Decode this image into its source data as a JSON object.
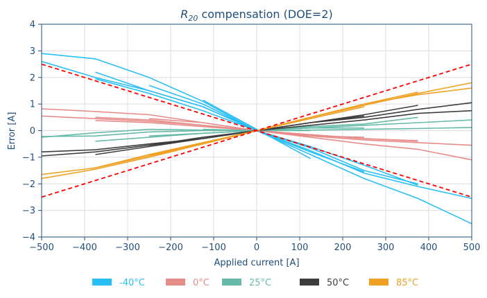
{
  "chart_data": {
    "type": "line",
    "title": "R20 compensation (DOE=2)",
    "title_main": "R",
    "title_sub": "20",
    "title_rest": " compensation (DOE=2)",
    "xlabel": "Applied current [A]",
    "ylabel": "Error [A]",
    "xlim": [
      -500,
      500
    ],
    "ylim": [
      -4,
      4
    ],
    "xticks": [
      -500,
      -400,
      -300,
      -200,
      -100,
      0,
      100,
      200,
      300,
      400,
      500
    ],
    "yticks": [
      -4,
      -3,
      -2,
      -1,
      0,
      1,
      2,
      3,
      4
    ],
    "xtick_labels": [
      "−500",
      "−400",
      "−300",
      "−200",
      "−100",
      "0",
      "100",
      "200",
      "300",
      "400",
      "500"
    ],
    "ytick_labels": [
      "−4",
      "−3",
      "−2",
      "−1",
      "0",
      "1",
      "2",
      "3",
      "4"
    ],
    "grid": true,
    "legend_position": "bottom-center",
    "legend": [
      {
        "label": "-40°C",
        "color": "#29bff5"
      },
      {
        "label": "0°C",
        "color": "#e88c8a"
      },
      {
        "label": "25°C",
        "color": "#66bba8"
      },
      {
        "label": "50°C",
        "color": "#3d3d3d"
      },
      {
        "label": "85°C",
        "color": "#eea123"
      }
    ],
    "series": [
      {
        "group": "-40°C",
        "color": "#29bff5",
        "x": [
          -500,
          -375,
          -250,
          -125,
          0,
          125,
          250,
          375,
          500
        ],
        "y": [
          2.9,
          2.7,
          2.0,
          1.1,
          0.0,
          -0.9,
          -1.8,
          -2.55,
          -3.5
        ]
      },
      {
        "group": "-40°C",
        "color": "#29bff5",
        "x": [
          -500,
          -375,
          -250,
          -125,
          0,
          125,
          250,
          375,
          500
        ],
        "y": [
          2.6,
          2.0,
          1.5,
          0.9,
          0.0,
          -0.75,
          -1.6,
          -2.1,
          -2.55
        ]
      },
      {
        "group": "-40°C",
        "color": "#29bff5",
        "x": [
          -375,
          -250,
          -125,
          0,
          125,
          250,
          375
        ],
        "y": [
          2.2,
          1.5,
          0.9,
          0.0,
          -0.65,
          -1.5,
          -2.0
        ]
      },
      {
        "group": "-40°C",
        "color": "#29bff5",
        "x": [
          -250,
          -125,
          0,
          125,
          250
        ],
        "y": [
          1.7,
          1.0,
          0.0,
          -0.8,
          -1.55
        ]
      },
      {
        "group": "-40°C",
        "color": "#29bff5",
        "x": [
          -125,
          0,
          125
        ],
        "y": [
          1.15,
          0.05,
          -1.05
        ]
      },
      {
        "group": "-40°C",
        "color": "#29bff5",
        "x": [
          -375,
          -250,
          -125,
          0,
          125,
          250,
          375
        ],
        "y": [
          1.95,
          1.4,
          0.75,
          0.0,
          -0.6,
          -1.3,
          -2.05
        ]
      },
      {
        "group": "0°C",
        "color": "#e88c8a",
        "x": [
          -500,
          -375,
          -250,
          -125,
          0,
          125,
          250,
          375,
          500
        ],
        "y": [
          0.82,
          0.72,
          0.6,
          0.3,
          0.0,
          -0.25,
          -0.5,
          -0.7,
          -1.1
        ]
      },
      {
        "group": "0°C",
        "color": "#e88c8a",
        "x": [
          -500,
          -375,
          -250,
          -125,
          0,
          125,
          250,
          375,
          500
        ],
        "y": [
          0.55,
          0.45,
          0.35,
          0.2,
          0.0,
          -0.2,
          -0.35,
          -0.45,
          -0.55
        ]
      },
      {
        "group": "0°C",
        "color": "#e88c8a",
        "x": [
          -375,
          -250,
          -125,
          0,
          125,
          250,
          375
        ],
        "y": [
          0.5,
          0.4,
          0.2,
          0.0,
          -0.15,
          -0.3,
          -0.38
        ]
      },
      {
        "group": "0°C",
        "color": "#e88c8a",
        "x": [
          -250,
          -125,
          0,
          125,
          250
        ],
        "y": [
          0.45,
          0.3,
          0.0,
          -0.2,
          -0.25
        ]
      },
      {
        "group": "0°C",
        "color": "#e88c8a",
        "x": [
          -375,
          -250,
          -125,
          0,
          125,
          250,
          375
        ],
        "y": [
          0.38,
          0.3,
          0.15,
          0.0,
          -0.15,
          -0.3,
          -0.4
        ]
      },
      {
        "group": "25°C",
        "color": "#66bba8",
        "x": [
          -500,
          -375,
          -250,
          -125,
          0,
          125,
          250,
          375,
          500
        ],
        "y": [
          -0.25,
          -0.08,
          0.05,
          0.02,
          0.0,
          0.02,
          0.05,
          0.08,
          0.12
        ]
      },
      {
        "group": "25°C",
        "color": "#66bba8",
        "x": [
          -500,
          -375,
          -250,
          -125,
          0,
          125,
          250,
          375,
          500
        ],
        "y": [
          -0.22,
          -0.2,
          -0.05,
          0.0,
          0.0,
          0.1,
          0.2,
          0.3,
          0.4
        ]
      },
      {
        "group": "25°C",
        "color": "#66bba8",
        "x": [
          -375,
          -250,
          -125,
          0,
          125,
          250,
          375
        ],
        "y": [
          -0.4,
          -0.25,
          -0.1,
          0.0,
          0.15,
          0.25,
          0.5
        ]
      },
      {
        "group": "25°C",
        "color": "#66bba8",
        "x": [
          -250,
          -125,
          0,
          125,
          250
        ],
        "y": [
          -0.2,
          -0.1,
          0.0,
          0.1,
          0.1
        ]
      },
      {
        "group": "25°C",
        "color": "#66bba8",
        "x": [
          -125,
          0,
          125
        ],
        "y": [
          0.05,
          0.0,
          0.0
        ]
      },
      {
        "group": "50°C",
        "color": "#3d3d3d",
        "x": [
          -500,
          -375,
          -250,
          -125,
          0,
          125,
          250,
          375,
          500
        ],
        "y": [
          -0.8,
          -0.72,
          -0.5,
          -0.3,
          0.0,
          0.3,
          0.5,
          0.8,
          1.05
        ]
      },
      {
        "group": "50°C",
        "color": "#3d3d3d",
        "x": [
          -500,
          -375,
          -250,
          -125,
          0,
          125,
          250,
          375,
          500
        ],
        "y": [
          -0.95,
          -0.8,
          -0.55,
          -0.25,
          0.0,
          0.2,
          0.4,
          0.65,
          0.75
        ]
      },
      {
        "group": "50°C",
        "color": "#3d3d3d",
        "x": [
          -375,
          -250,
          -125,
          0,
          125,
          250,
          375
        ],
        "y": [
          -0.9,
          -0.6,
          -0.3,
          0.0,
          0.3,
          0.6,
          0.95
        ]
      },
      {
        "group": "50°C",
        "color": "#3d3d3d",
        "x": [
          -250,
          -125,
          0,
          125,
          250
        ],
        "y": [
          -0.55,
          -0.3,
          0.0,
          0.3,
          0.55
        ]
      },
      {
        "group": "85°C",
        "color": "#eea123",
        "x": [
          -500,
          -375,
          -250,
          -125,
          0,
          125,
          250,
          375,
          500
        ],
        "y": [
          -1.65,
          -1.4,
          -0.95,
          -0.5,
          0.0,
          0.5,
          0.95,
          1.4,
          1.8
        ]
      },
      {
        "group": "85°C",
        "color": "#eea123",
        "x": [
          -500,
          -375,
          -250,
          -125,
          0,
          125,
          250,
          375,
          500
        ],
        "y": [
          -1.8,
          -1.45,
          -1.0,
          -0.5,
          0.0,
          0.5,
          1.0,
          1.35,
          1.6
        ]
      },
      {
        "group": "85°C",
        "color": "#eea123",
        "x": [
          -375,
          -250,
          -125,
          0,
          125,
          250,
          375
        ],
        "y": [
          -1.4,
          -0.9,
          -0.45,
          0.0,
          0.5,
          1.0,
          1.45
        ]
      },
      {
        "group": "85°C",
        "color": "#eea123",
        "x": [
          -250,
          -125,
          0,
          125,
          250
        ],
        "y": [
          -0.92,
          -0.48,
          0.0,
          0.45,
          0.9
        ]
      }
    ],
    "limits": [
      {
        "color": "#ff0000",
        "style": "dashed",
        "x": [
          -500,
          500
        ],
        "y": [
          2.5,
          -2.5
        ]
      },
      {
        "color": "#ff0000",
        "style": "dashed",
        "x": [
          -500,
          500
        ],
        "y": [
          -2.5,
          2.5
        ]
      }
    ]
  }
}
